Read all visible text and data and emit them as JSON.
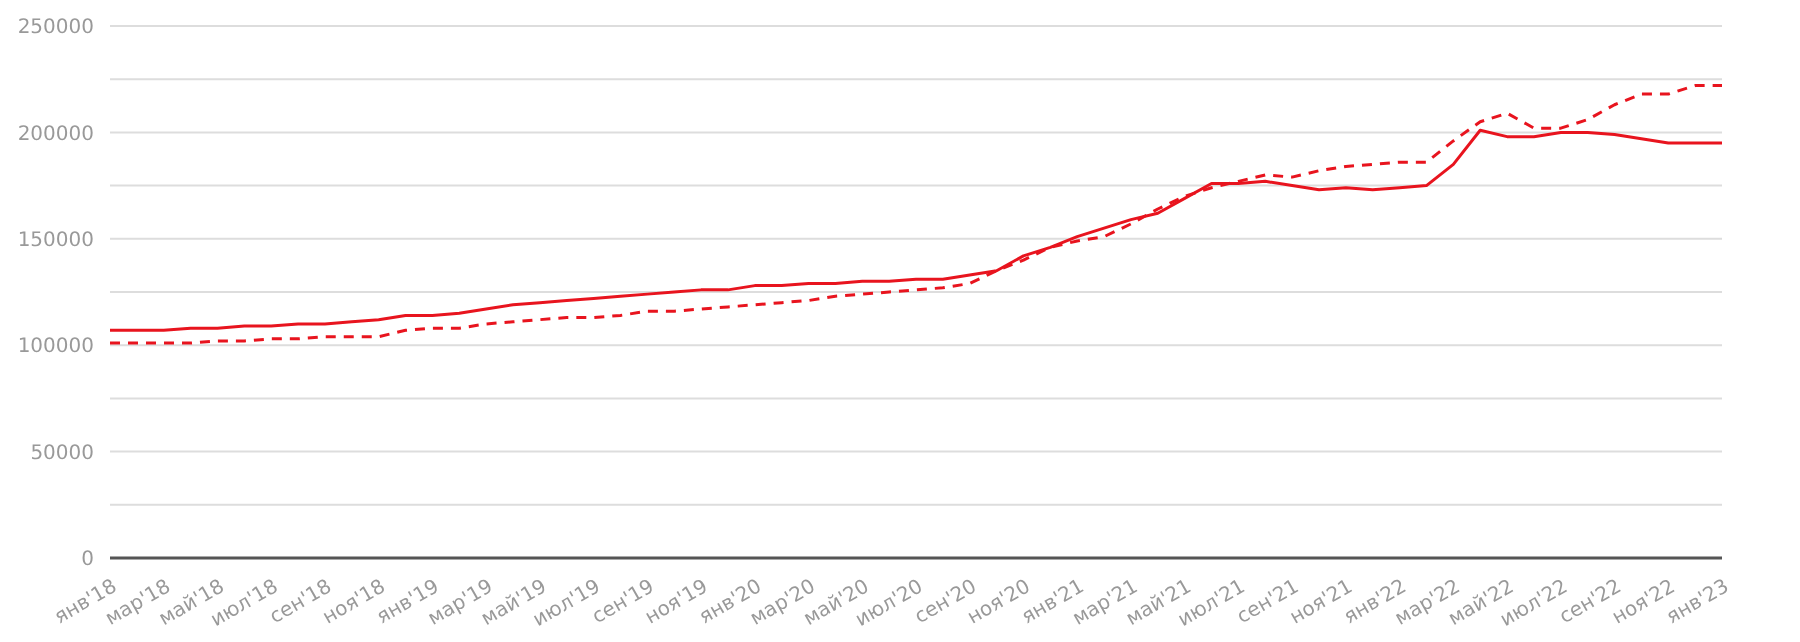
{
  "chart_data": {
    "type": "line",
    "categories": [
      "янв'18",
      null,
      "мар'18",
      null,
      "май'18",
      null,
      "июл'18",
      null,
      "сен'18",
      null,
      "ноя'18",
      null,
      "янв'19",
      null,
      "мар'19",
      null,
      "май'19",
      null,
      "июл'19",
      null,
      "сен'19",
      null,
      "ноя'19",
      null,
      "янв'20",
      null,
      "мар'20",
      null,
      "май'20",
      null,
      "июл'20",
      null,
      "сен'20",
      null,
      "ноя'20",
      null,
      "янв'21",
      null,
      "мар'21",
      null,
      "май'21",
      null,
      "июл'21",
      null,
      "сен'21",
      null,
      "ноя'21",
      null,
      "янв'22",
      null,
      "мар'22",
      null,
      "май'22",
      null,
      "июл'22",
      null,
      "сен'22",
      null,
      "ноя'22",
      null,
      "янв'23"
    ],
    "series": [
      {
        "color": "#e8141e",
        "line_style": "solid",
        "values": [
          107000,
          107000,
          107000,
          108000,
          108000,
          109000,
          109000,
          110000,
          110000,
          111000,
          112000,
          114000,
          114000,
          115000,
          117000,
          119000,
          120000,
          121000,
          122000,
          123000,
          124000,
          125000,
          126000,
          126000,
          128000,
          128000,
          129000,
          129000,
          130000,
          130000,
          131000,
          131000,
          133000,
          135000,
          142000,
          146000,
          151000,
          155000,
          159000,
          162000,
          169000,
          176000,
          176000,
          177000,
          175000,
          173000,
          174000,
          173000,
          174000,
          175000,
          185000,
          201000,
          198000,
          198000,
          200000,
          200000,
          199000,
          197000,
          195000,
          195000,
          195000
        ]
      },
      {
        "color": "#e8141e",
        "line_style": "dashed",
        "values": [
          101000,
          101000,
          101000,
          101000,
          102000,
          102000,
          103000,
          103000,
          104000,
          104000,
          104000,
          107000,
          108000,
          108000,
          110000,
          111000,
          112000,
          113000,
          113000,
          114000,
          116000,
          116000,
          117000,
          118000,
          119000,
          120000,
          121000,
          123000,
          124000,
          125000,
          126000,
          127000,
          129000,
          135000,
          140000,
          146000,
          149000,
          151000,
          157000,
          164000,
          170000,
          174000,
          177000,
          180000,
          179000,
          182000,
          184000,
          185000,
          186000,
          186000,
          196000,
          205000,
          209000,
          202000,
          202000,
          206000,
          213000,
          218000,
          218000,
          222000,
          222000
        ]
      }
    ],
    "ylim": [
      0,
      250000
    ],
    "yticks": [
      0,
      {
        "value": 25000,
        "label": null
      },
      50000,
      {
        "value": 75000,
        "label": null
      },
      100000,
      {
        "value": 125000,
        "label": null
      },
      150000,
      {
        "value": 175000,
        "label": null
      },
      200000,
      {
        "value": 225000,
        "label": null
      },
      250000
    ],
    "grid": "y",
    "marker": "none",
    "legend": false
  }
}
